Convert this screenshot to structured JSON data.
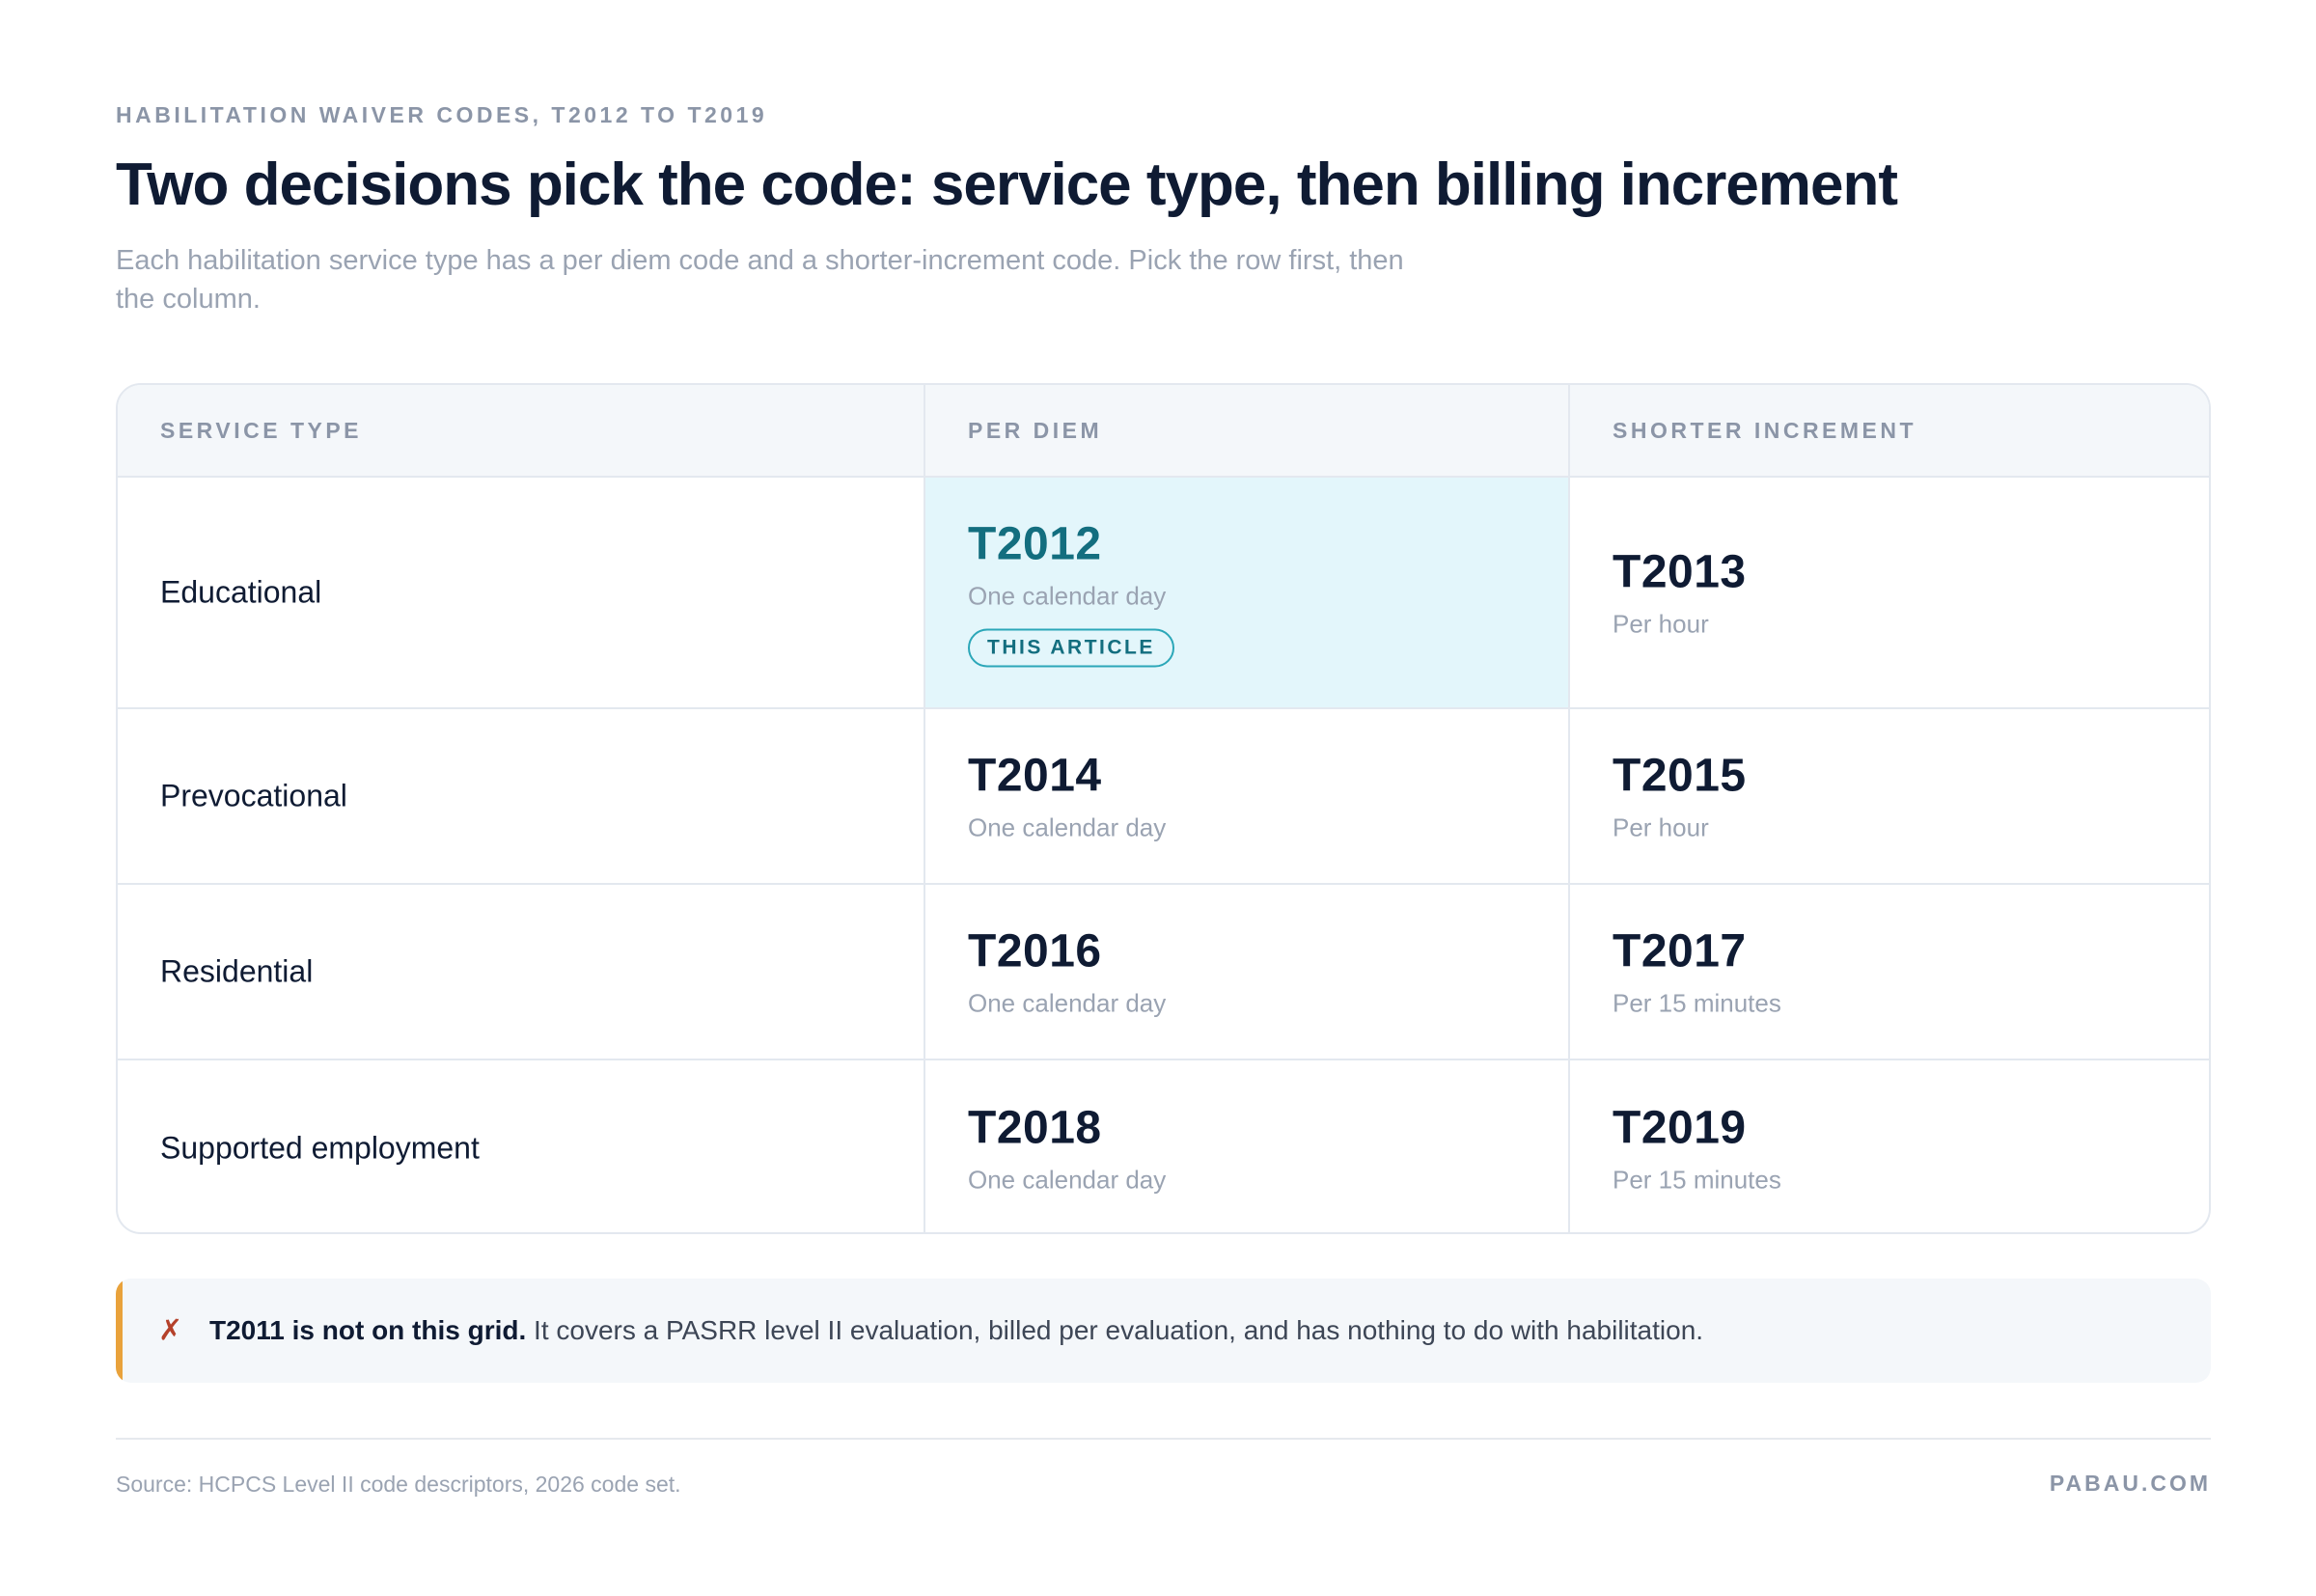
{
  "header": {
    "eyebrow": "HABILITATION WAIVER CODES, T2012 TO T2019",
    "title": "Two decisions pick the code: service type, then billing increment",
    "subtitle": "Each habilitation service type has a per diem code and a shorter-increment code. Pick the row first, then the column."
  },
  "table": {
    "columns": [
      "SERVICE TYPE",
      "PER DIEM",
      "SHORTER INCREMENT"
    ],
    "rows": [
      {
        "service": "Educational",
        "per_diem": {
          "code": "T2012",
          "unit": "One calendar day",
          "badge": "THIS ARTICLE"
        },
        "shorter": {
          "code": "T2013",
          "unit": "Per hour"
        }
      },
      {
        "service": "Prevocational",
        "per_diem": {
          "code": "T2014",
          "unit": "One calendar day"
        },
        "shorter": {
          "code": "T2015",
          "unit": "Per hour"
        }
      },
      {
        "service": "Residential",
        "per_diem": {
          "code": "T2016",
          "unit": "One calendar day"
        },
        "shorter": {
          "code": "T2017",
          "unit": "Per 15 minutes"
        }
      },
      {
        "service": "Supported employment",
        "per_diem": {
          "code": "T2018",
          "unit": "One calendar day"
        },
        "shorter": {
          "code": "T2019",
          "unit": "Per 15 minutes"
        }
      }
    ]
  },
  "note": {
    "icon": "cross-mark-icon",
    "strong": "T2011 is not on this grid.",
    "text": " It covers a PASRR level II evaluation, billed per evaluation, and has nothing to do with habilitation."
  },
  "footer": {
    "source": "Source: HCPCS Level II code descriptors, 2026 code set.",
    "brand": "PABAU.COM"
  },
  "colors": {
    "highlight_bg": "#e3f6fb",
    "highlight_text": "#136e7f",
    "note_accent": "#e9a23b",
    "cross_mark": "#b4412a"
  }
}
